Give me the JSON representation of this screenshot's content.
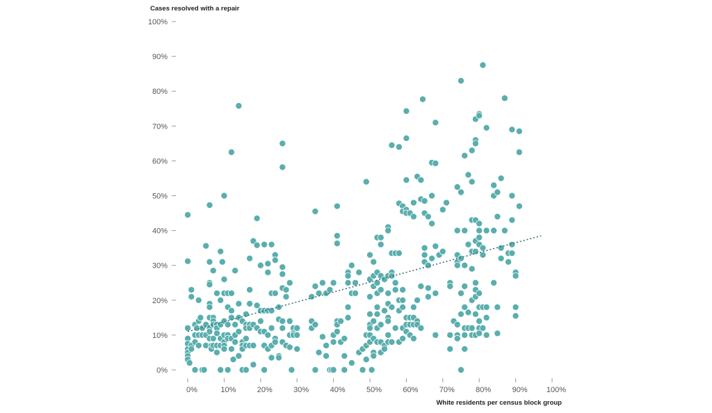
{
  "chart_data": {
    "type": "scatter",
    "title": "",
    "ylabel": "Cases resolved with a repair",
    "xlabel": "White residents per census block group",
    "xlim": [
      0,
      100
    ],
    "ylim": [
      0,
      100
    ],
    "x_ticks": [
      "0%",
      "10%",
      "20%",
      "30%",
      "40%",
      "50%",
      "60%",
      "70%",
      "80%",
      "90%",
      "100%"
    ],
    "y_ticks": [
      "0%",
      "10%",
      "20%",
      "30%",
      "40%",
      "50%",
      "60%",
      "70%",
      "80%",
      "90%",
      "100%"
    ],
    "grid": false,
    "point_color": "#5aaeae",
    "point_edge_color": "#ffffff",
    "trendline": {
      "style": "dotted",
      "color": "#3d6e78",
      "x": [
        0,
        97
      ],
      "y": [
        11,
        38.5
      ]
    },
    "points": [
      [
        0,
        44.5
      ],
      [
        0,
        31.2
      ],
      [
        0,
        12
      ],
      [
        0,
        9
      ],
      [
        0,
        7.5
      ],
      [
        0,
        6
      ],
      [
        0,
        5
      ],
      [
        0,
        4
      ],
      [
        0,
        3
      ],
      [
        0.5,
        2
      ],
      [
        1,
        21
      ],
      [
        1,
        23
      ],
      [
        1,
        7
      ],
      [
        1,
        6
      ],
      [
        2,
        13
      ],
      [
        2,
        10
      ],
      [
        2,
        8
      ],
      [
        2,
        0
      ],
      [
        2.5,
        12
      ],
      [
        3,
        20
      ],
      [
        3,
        14
      ],
      [
        3,
        10
      ],
      [
        3,
        7
      ],
      [
        3.5,
        15
      ],
      [
        4,
        12
      ],
      [
        4,
        10
      ],
      [
        4,
        0
      ],
      [
        4.5,
        0
      ],
      [
        5,
        35.6
      ],
      [
        5,
        13
      ],
      [
        5,
        10
      ],
      [
        5,
        7
      ],
      [
        6,
        47.3
      ],
      [
        6,
        31
      ],
      [
        6,
        25
      ],
      [
        6,
        24.5
      ],
      [
        6,
        19
      ],
      [
        6,
        18
      ],
      [
        6,
        15
      ],
      [
        6,
        12
      ],
      [
        6,
        11
      ],
      [
        6,
        9
      ],
      [
        6.5,
        7
      ],
      [
        6.5,
        6
      ],
      [
        7,
        28.5
      ],
      [
        7,
        15
      ],
      [
        7,
        14
      ],
      [
        7,
        13
      ],
      [
        7,
        9
      ],
      [
        7,
        7
      ],
      [
        8,
        22
      ],
      [
        8,
        13
      ],
      [
        8,
        12
      ],
      [
        8,
        10.5
      ],
      [
        8,
        7
      ],
      [
        8,
        5
      ],
      [
        9,
        34
      ],
      [
        9,
        20
      ],
      [
        9,
        13
      ],
      [
        9,
        9
      ],
      [
        9,
        7
      ],
      [
        9,
        0
      ],
      [
        9.5,
        31
      ],
      [
        10,
        50
      ],
      [
        10,
        26
      ],
      [
        10,
        22
      ],
      [
        10,
        14
      ],
      [
        10,
        10
      ],
      [
        10,
        8
      ],
      [
        10,
        7
      ],
      [
        10,
        6
      ],
      [
        11,
        22
      ],
      [
        11,
        18
      ],
      [
        11,
        13
      ],
      [
        11,
        10
      ],
      [
        11,
        9
      ],
      [
        11,
        0
      ],
      [
        12,
        62.5
      ],
      [
        12,
        22
      ],
      [
        12,
        17
      ],
      [
        12,
        15
      ],
      [
        12,
        9
      ],
      [
        12,
        6
      ],
      [
        12.5,
        3
      ],
      [
        13,
        28.5
      ],
      [
        13,
        13
      ],
      [
        13,
        10
      ],
      [
        13,
        8
      ],
      [
        14,
        75.8
      ],
      [
        14,
        19
      ],
      [
        14,
        15
      ],
      [
        14,
        11
      ],
      [
        14,
        4
      ],
      [
        15,
        14
      ],
      [
        15,
        8
      ],
      [
        15,
        7
      ],
      [
        15,
        6
      ],
      [
        15,
        0
      ],
      [
        16,
        16
      ],
      [
        16,
        13
      ],
      [
        16,
        12
      ],
      [
        16,
        9
      ],
      [
        16,
        7
      ],
      [
        16,
        0
      ],
      [
        17,
        32
      ],
      [
        17,
        23
      ],
      [
        17,
        19
      ],
      [
        17,
        13
      ],
      [
        17,
        12
      ],
      [
        17,
        7
      ],
      [
        18,
        37
      ],
      [
        18,
        13
      ],
      [
        18,
        7
      ],
      [
        18,
        1.5
      ],
      [
        19,
        43.5
      ],
      [
        19,
        35.8
      ],
      [
        19,
        18.5
      ],
      [
        19,
        12
      ],
      [
        20,
        30
      ],
      [
        20,
        17
      ],
      [
        20,
        14
      ],
      [
        20,
        11
      ],
      [
        21,
        36
      ],
      [
        21,
        17
      ],
      [
        21,
        11
      ],
      [
        21,
        7
      ],
      [
        21,
        0
      ],
      [
        22,
        30.5
      ],
      [
        22,
        28
      ],
      [
        22,
        17
      ],
      [
        22,
        10
      ],
      [
        22,
        6
      ],
      [
        23,
        36
      ],
      [
        23,
        22
      ],
      [
        23,
        17
      ],
      [
        23,
        12
      ],
      [
        23,
        7
      ],
      [
        23,
        3.5
      ],
      [
        24,
        33
      ],
      [
        24,
        31.5
      ],
      [
        24,
        22
      ],
      [
        24,
        9
      ],
      [
        24,
        8
      ],
      [
        25,
        18
      ],
      [
        25,
        14.5
      ],
      [
        25,
        4
      ],
      [
        25,
        3.5
      ],
      [
        26,
        65
      ],
      [
        26,
        58.2
      ],
      [
        26,
        29.5
      ],
      [
        26,
        27.5
      ],
      [
        26,
        23.5
      ],
      [
        26,
        14
      ],
      [
        26,
        12
      ],
      [
        26,
        8
      ],
      [
        27,
        23
      ],
      [
        27,
        21
      ],
      [
        27,
        7
      ],
      [
        28,
        25
      ],
      [
        28,
        14
      ],
      [
        28,
        10
      ],
      [
        28,
        6.5
      ],
      [
        28.5,
        0
      ],
      [
        29,
        12
      ],
      [
        29,
        10.5
      ],
      [
        29,
        10
      ],
      [
        30,
        12
      ],
      [
        30,
        10
      ],
      [
        30,
        6
      ],
      [
        34,
        21
      ],
      [
        34,
        14
      ],
      [
        34,
        12
      ],
      [
        35,
        45.5
      ],
      [
        35,
        24
      ],
      [
        35,
        13
      ],
      [
        35,
        0
      ],
      [
        36,
        22
      ],
      [
        36,
        5
      ],
      [
        37,
        25
      ],
      [
        37,
        9.5
      ],
      [
        38,
        22
      ],
      [
        38,
        7
      ],
      [
        38,
        4
      ],
      [
        39,
        23
      ],
      [
        39,
        0
      ],
      [
        39.5,
        0
      ],
      [
        40,
        25
      ],
      [
        40,
        10
      ],
      [
        40,
        8
      ],
      [
        40,
        0
      ],
      [
        41,
        47
      ],
      [
        41,
        38.5
      ],
      [
        41,
        36.3
      ],
      [
        41,
        14
      ],
      [
        41,
        13
      ],
      [
        41,
        11
      ],
      [
        42,
        14
      ],
      [
        42,
        8
      ],
      [
        43,
        4
      ],
      [
        43,
        9
      ],
      [
        43,
        0
      ],
      [
        44,
        28
      ],
      [
        44,
        27
      ],
      [
        44,
        25
      ],
      [
        44,
        18
      ],
      [
        44,
        15
      ],
      [
        45,
        30
      ],
      [
        45,
        22
      ],
      [
        45,
        2
      ],
      [
        46,
        25
      ],
      [
        46,
        22
      ],
      [
        47,
        28
      ],
      [
        47,
        5
      ],
      [
        48,
        6
      ],
      [
        48,
        0
      ],
      [
        49,
        54
      ],
      [
        49,
        10
      ],
      [
        49,
        7
      ],
      [
        49,
        3
      ],
      [
        50,
        33
      ],
      [
        50,
        26
      ],
      [
        50,
        21
      ],
      [
        50,
        16
      ],
      [
        50,
        13
      ],
      [
        50,
        12
      ],
      [
        50,
        10
      ],
      [
        50,
        8
      ],
      [
        50.5,
        0
      ],
      [
        51,
        31
      ],
      [
        51,
        27
      ],
      [
        51,
        24
      ],
      [
        51,
        14
      ],
      [
        51,
        9
      ],
      [
        51,
        5
      ],
      [
        51,
        4
      ],
      [
        52,
        38
      ],
      [
        52,
        28
      ],
      [
        52,
        25
      ],
      [
        52,
        22
      ],
      [
        52,
        18
      ],
      [
        52,
        16
      ],
      [
        52,
        12
      ],
      [
        52,
        8
      ],
      [
        53,
        38
      ],
      [
        53,
        36
      ],
      [
        53,
        27
      ],
      [
        53,
        23
      ],
      [
        53,
        13
      ],
      [
        53,
        8
      ],
      [
        53,
        5
      ],
      [
        54,
        26
      ],
      [
        54,
        17
      ],
      [
        54,
        7
      ],
      [
        54,
        6
      ],
      [
        55,
        41
      ],
      [
        55,
        40
      ],
      [
        55,
        27
      ],
      [
        55,
        22
      ],
      [
        55,
        19
      ],
      [
        55,
        15
      ],
      [
        55,
        14
      ],
      [
        55,
        10
      ],
      [
        55,
        8
      ],
      [
        56,
        64.5
      ],
      [
        56,
        33.5
      ],
      [
        56,
        28
      ],
      [
        56,
        27
      ],
      [
        56,
        18
      ],
      [
        56,
        8
      ],
      [
        57,
        33.5
      ],
      [
        57,
        25
      ],
      [
        57,
        23
      ],
      [
        57,
        12
      ],
      [
        58,
        64
      ],
      [
        58,
        47.8
      ],
      [
        58,
        33.5
      ],
      [
        58,
        20
      ],
      [
        58,
        17
      ],
      [
        58,
        8
      ],
      [
        59,
        47
      ],
      [
        59,
        45.5
      ],
      [
        59,
        23
      ],
      [
        59,
        20
      ],
      [
        59,
        18
      ],
      [
        59,
        12
      ],
      [
        59,
        9
      ],
      [
        60,
        74.3
      ],
      [
        60,
        66.5
      ],
      [
        60,
        54.5
      ],
      [
        60,
        46
      ],
      [
        60,
        45
      ],
      [
        60,
        15
      ],
      [
        60,
        13
      ],
      [
        60,
        11
      ],
      [
        61,
        45
      ],
      [
        61,
        15
      ],
      [
        61,
        13
      ],
      [
        61,
        10
      ],
      [
        62,
        48
      ],
      [
        62,
        44
      ],
      [
        62,
        18
      ],
      [
        62,
        15
      ],
      [
        62,
        13
      ],
      [
        62,
        9
      ],
      [
        63,
        55.5
      ],
      [
        63,
        20
      ],
      [
        63,
        14
      ],
      [
        63,
        13
      ],
      [
        64,
        54.5
      ],
      [
        64,
        49
      ],
      [
        64,
        24
      ],
      [
        64,
        12
      ],
      [
        64.5,
        77.7
      ],
      [
        65,
        48.5
      ],
      [
        65,
        45
      ],
      [
        65,
        35
      ],
      [
        65,
        33
      ],
      [
        65,
        31
      ],
      [
        66,
        44
      ],
      [
        66,
        30
      ],
      [
        66,
        23.5
      ],
      [
        66,
        21
      ],
      [
        67,
        59.5
      ],
      [
        67,
        50
      ],
      [
        67,
        42
      ],
      [
        67,
        32
      ],
      [
        68,
        71
      ],
      [
        68,
        59.3
      ],
      [
        68,
        35.5
      ],
      [
        68,
        22
      ],
      [
        68,
        10
      ],
      [
        69,
        33
      ],
      [
        70,
        46
      ],
      [
        70,
        34
      ],
      [
        71,
        48
      ],
      [
        72,
        25
      ],
      [
        72,
        24
      ],
      [
        72,
        10
      ],
      [
        72,
        6
      ],
      [
        73,
        14
      ],
      [
        74,
        52.5
      ],
      [
        74,
        40
      ],
      [
        74,
        33
      ],
      [
        74,
        31
      ],
      [
        74,
        30
      ],
      [
        74,
        13
      ],
      [
        74,
        10
      ],
      [
        74,
        9
      ],
      [
        75,
        83
      ],
      [
        75,
        51
      ],
      [
        75,
        32
      ],
      [
        75,
        22
      ],
      [
        75,
        16
      ],
      [
        75,
        0
      ],
      [
        76,
        61.5
      ],
      [
        76,
        40
      ],
      [
        76,
        30
      ],
      [
        76,
        24
      ],
      [
        76,
        18
      ],
      [
        76,
        12
      ],
      [
        76,
        10
      ],
      [
        76,
        6
      ],
      [
        77,
        56
      ],
      [
        77,
        36
      ],
      [
        77,
        16.5
      ],
      [
        77,
        12
      ],
      [
        78,
        63
      ],
      [
        78,
        54
      ],
      [
        78,
        43
      ],
      [
        78,
        34
      ],
      [
        78,
        29
      ],
      [
        78,
        20
      ],
      [
        78,
        12
      ],
      [
        78,
        10
      ],
      [
        79,
        72
      ],
      [
        79,
        66
      ],
      [
        79,
        65
      ],
      [
        79,
        43
      ],
      [
        79,
        37
      ],
      [
        79,
        34
      ],
      [
        79,
        25
      ],
      [
        79,
        23
      ],
      [
        79,
        21
      ],
      [
        79,
        16
      ],
      [
        79,
        10
      ],
      [
        80,
        73.5
      ],
      [
        80,
        73
      ],
      [
        80,
        42
      ],
      [
        80,
        40
      ],
      [
        80,
        38
      ],
      [
        80,
        36
      ],
      [
        80,
        22
      ],
      [
        80,
        18
      ],
      [
        80,
        14
      ],
      [
        80,
        12
      ],
      [
        80,
        10.5
      ],
      [
        81,
        87.5
      ],
      [
        81,
        35
      ],
      [
        81,
        33
      ],
      [
        81,
        18
      ],
      [
        81,
        12
      ],
      [
        82,
        69.5
      ],
      [
        82,
        40
      ],
      [
        82,
        18
      ],
      [
        82,
        15
      ],
      [
        82,
        10
      ],
      [
        84,
        53
      ],
      [
        84,
        50
      ],
      [
        84,
        40
      ],
      [
        84,
        25
      ],
      [
        85,
        51
      ],
      [
        85,
        44
      ],
      [
        85,
        18
      ],
      [
        85,
        10.5
      ],
      [
        86,
        55
      ],
      [
        86,
        35
      ],
      [
        86,
        32
      ],
      [
        87,
        78
      ],
      [
        87,
        40
      ],
      [
        88,
        33.5
      ],
      [
        88,
        31
      ],
      [
        89,
        69
      ],
      [
        89,
        50
      ],
      [
        89,
        43
      ],
      [
        89,
        36
      ],
      [
        89,
        33.5
      ],
      [
        90,
        28
      ],
      [
        90,
        27
      ],
      [
        90,
        18
      ],
      [
        90,
        15.5
      ],
      [
        91,
        68.5
      ],
      [
        91,
        62.5
      ],
      [
        91,
        47
      ]
    ]
  }
}
